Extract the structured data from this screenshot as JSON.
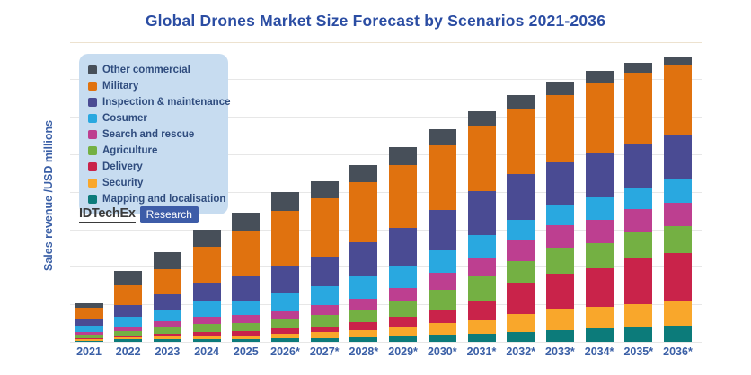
{
  "title": "Global Drones Market Size Forecast by Scenarios 2021-2036",
  "y_axis_label": "Sales revenue /USD millions",
  "branding": {
    "name": "IDTechEx",
    "badge": "Research"
  },
  "colors": {
    "title_text": "#2B4DA3",
    "axis_text": "#3A5FA6",
    "legend_bg": "#C7DCF0",
    "legend_text": "#2F4C7E",
    "gridline": "#E7E7E7",
    "gridline_top": "#EDE2CF",
    "brand_badge_bg": "#3D5CA8"
  },
  "chart_data": {
    "type": "bar",
    "stacked": true,
    "title": "Global Drones Market Size Forecast by Scenarios 2021-2036",
    "xlabel": "",
    "ylabel": "Sales revenue /USD millions",
    "legend_position": "top-left",
    "grid": "horizontal",
    "value_note": "No numeric y-axis ticks are shown in the figure; values are relative stacked-segment heights (estimated, 1 unit = 1 px).",
    "categories": [
      "2021",
      "2022",
      "2023",
      "2024",
      "2025",
      "2026*",
      "2027*",
      "2028*",
      "2029*",
      "2030*",
      "2031*",
      "2032*",
      "2033*",
      "2034*",
      "2035*",
      "2036*"
    ],
    "series": [
      {
        "name": "Mapping and localisation",
        "color": "#0C7B7A",
        "values": [
          1,
          3,
          3,
          3,
          3,
          4,
          4,
          5,
          6,
          8,
          9,
          11,
          13,
          15,
          17,
          18
        ]
      },
      {
        "name": "Security",
        "color": "#F9A72B",
        "values": [
          2,
          2,
          3,
          4,
          4,
          5,
          7,
          8,
          10,
          13,
          15,
          20,
          24,
          24,
          25,
          28
        ]
      },
      {
        "name": "Delivery",
        "color": "#C9234A",
        "values": [
          1,
          2,
          3,
          4,
          5,
          6,
          6,
          9,
          12,
          15,
          22,
          34,
          39,
          43,
          51,
          53
        ]
      },
      {
        "name": "Agriculture",
        "color": "#74B043",
        "values": [
          4,
          5,
          7,
          9,
          9,
          10,
          13,
          14,
          17,
          22,
          27,
          25,
          29,
          28,
          29,
          30
        ]
      },
      {
        "name": "Search and rescue",
        "color": "#BD3F90",
        "values": [
          3,
          5,
          7,
          8,
          9,
          9,
          11,
          12,
          15,
          19,
          20,
          23,
          25,
          26,
          26,
          26
        ]
      },
      {
        "name": "Cosumer",
        "color": "#29A8E0",
        "values": [
          7,
          11,
          13,
          17,
          16,
          20,
          21,
          25,
          24,
          25,
          26,
          23,
          22,
          25,
          24,
          26
        ]
      },
      {
        "name": "Inspection & maintenance",
        "color": "#4A4B93",
        "values": [
          7,
          13,
          17,
          20,
          27,
          30,
          32,
          38,
          43,
          45,
          49,
          51,
          48,
          50,
          48,
          50
        ]
      },
      {
        "name": "Military",
        "color": "#E0720F",
        "values": [
          13,
          22,
          28,
          41,
          51,
          62,
          66,
          67,
          70,
          72,
          72,
          72,
          75,
          78,
          80,
          77
        ]
      },
      {
        "name": "Other commercial",
        "color": "#474F59",
        "values": [
          5,
          16,
          19,
          19,
          20,
          21,
          19,
          19,
          20,
          18,
          17,
          16,
          15,
          13,
          11,
          9
        ]
      }
    ],
    "totals": [
      43,
      79,
      100,
      125,
      144,
      167,
      179,
      197,
      217,
      237,
      257,
      275,
      290,
      302,
      311,
      317
    ]
  }
}
